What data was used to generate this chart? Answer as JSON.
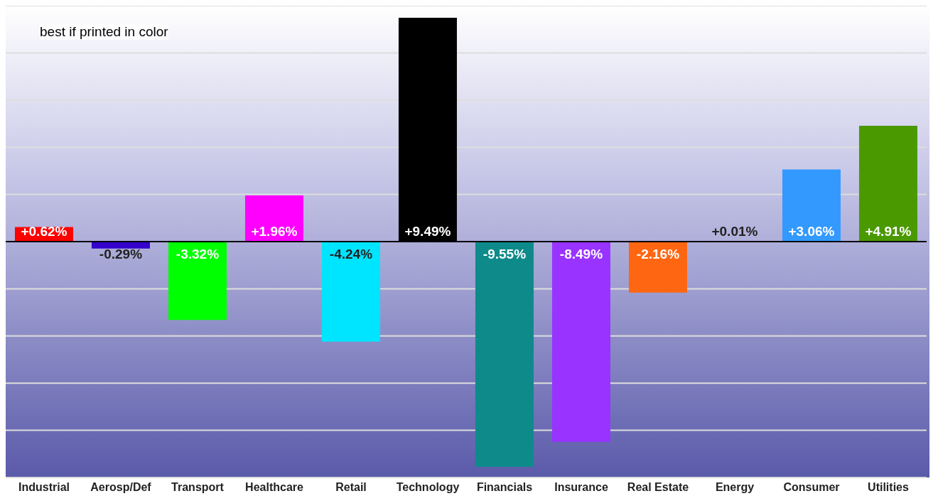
{
  "chart_data": {
    "type": "bar",
    "categories": [
      "Industrial",
      "Aerosp/Def",
      "Transport",
      "Healthcare",
      "Retail",
      "Technology",
      "Financials",
      "Insurance",
      "Real Estate",
      "Energy",
      "Consumer",
      "Utilities"
    ],
    "values": [
      0.62,
      -0.29,
      -3.32,
      1.96,
      -4.24,
      9.49,
      -9.55,
      -8.49,
      -2.16,
      0.01,
      3.06,
      4.91
    ],
    "value_labels": [
      "+0.62%",
      "-0.29%",
      "-3.32%",
      "+1.96%",
      "-4.24%",
      "+9.49%",
      "-9.55%",
      "-8.49%",
      "-2.16%",
      "+0.01%",
      "+3.06%",
      "+4.91%"
    ],
    "colors": [
      "#ff0000",
      "#3300cc",
      "#00ff00",
      "#ff00ff",
      "#00e5ff",
      "#000000",
      "#0e8a8a",
      "#9933ff",
      "#ff6611",
      "#aa0000",
      "#3399ff",
      "#4a9900"
    ],
    "ylim": [
      -10,
      10
    ],
    "yticks": [
      {
        "value": -8,
        "label": null
      },
      {
        "value": -6,
        "label": null
      },
      {
        "value": -4,
        "label": null
      },
      {
        "value": -2,
        "label": null
      },
      {
        "value": 0,
        "label": null
      },
      {
        "value": 2,
        "label": null
      },
      {
        "value": 4,
        "label": null
      },
      {
        "value": 6,
        "label": null
      },
      {
        "value": 8,
        "label": null
      }
    ],
    "tick_labels": "x",
    "grid": "y",
    "annotations": [
      "best if printed in color"
    ]
  }
}
